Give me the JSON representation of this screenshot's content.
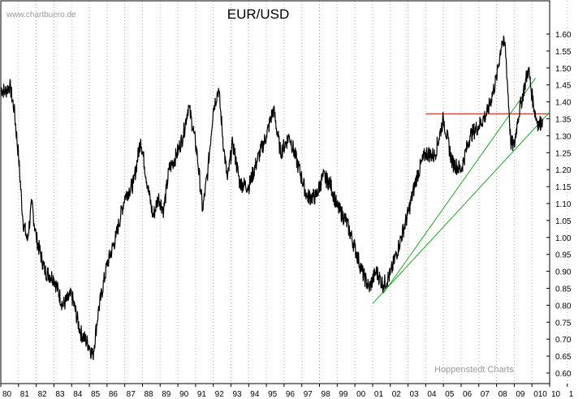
{
  "chart_data": {
    "type": "line",
    "title": "EUR/USD",
    "watermark": "www.chartbuero.de",
    "credit": "Hoppenstedt Charts",
    "xlabel": "",
    "ylabel": "",
    "xlim": [
      1980.0,
      2011.0
    ],
    "ylim": [
      0.58,
      1.66
    ],
    "grid": "vertical-dotted",
    "x_tick_labels": [
      "80",
      "81",
      "82",
      "83",
      "84",
      "85",
      "86",
      "87",
      "88",
      "89",
      "90",
      "91",
      "92",
      "93",
      "94",
      "95",
      "96",
      "97",
      "98",
      "99",
      "00",
      "01",
      "02",
      "03",
      "04",
      "05",
      "06",
      "07",
      "08",
      "09",
      "010",
      "10",
      "1"
    ],
    "y_ticks": [
      0.6,
      0.65,
      0.7,
      0.75,
      0.8,
      0.85,
      0.9,
      0.95,
      1.0,
      1.05,
      1.1,
      1.15,
      1.2,
      1.25,
      1.3,
      1.35,
      1.4,
      1.45,
      1.5,
      1.55,
      1.6
    ],
    "y_tick_labels": [
      "0.60",
      "0.65",
      "0.70",
      "0.75",
      "0.80",
      "0.85",
      "0.90",
      "0.95",
      "1.00",
      "1.05",
      "1.10",
      "1.15",
      "1.20",
      "1.25",
      "1.30",
      "1.35",
      "1.40",
      "1.45",
      "1.50",
      "1.55",
      "1.60"
    ],
    "series": [
      {
        "color": "#000000",
        "x": [
          1980.0,
          1980.25,
          1980.5,
          1980.75,
          1981.0,
          1981.25,
          1981.5,
          1981.75,
          1982.0,
          1982.5,
          1983.0,
          1983.5,
          1984.0,
          1984.5,
          1985.0,
          1985.2,
          1985.5,
          1986.0,
          1986.5,
          1987.0,
          1987.5,
          1987.9,
          1988.3,
          1988.6,
          1988.9,
          1989.2,
          1989.5,
          1989.9,
          1990.3,
          1990.6,
          1990.9,
          1991.1,
          1991.4,
          1991.7,
          1992.0,
          1992.3,
          1992.6,
          1992.8,
          1993.1,
          1993.5,
          1994.0,
          1994.5,
          1995.0,
          1995.4,
          1995.8,
          1996.3,
          1996.8,
          1997.3,
          1997.8,
          1998.2,
          1998.6,
          1999.0,
          1999.5,
          2000.0,
          2000.4,
          2000.8,
          2001.2,
          2001.6,
          2002.0,
          2002.5,
          2003.0,
          2003.5,
          2004.0,
          2004.5,
          2005.0,
          2005.5,
          2006.0,
          2006.5,
          2007.0,
          2007.5,
          2008.0,
          2008.3,
          2008.5,
          2008.7,
          2008.8,
          2009.0,
          2009.2,
          2009.4,
          2009.6,
          2009.8,
          2010.0,
          2010.2,
          2010.4,
          2010.6
        ],
        "y": [
          1.44,
          1.43,
          1.45,
          1.38,
          1.24,
          1.05,
          0.99,
          1.1,
          1.0,
          0.9,
          0.88,
          0.8,
          0.83,
          0.72,
          0.68,
          0.65,
          0.78,
          0.92,
          1.0,
          1.12,
          1.16,
          1.29,
          1.15,
          1.06,
          1.12,
          1.08,
          1.2,
          1.24,
          1.3,
          1.39,
          1.31,
          1.24,
          1.08,
          1.2,
          1.38,
          1.44,
          1.26,
          1.17,
          1.28,
          1.16,
          1.15,
          1.23,
          1.3,
          1.38,
          1.25,
          1.3,
          1.21,
          1.12,
          1.12,
          1.18,
          1.16,
          1.09,
          1.05,
          0.97,
          0.9,
          0.85,
          0.9,
          0.86,
          0.89,
          0.98,
          1.07,
          1.18,
          1.25,
          1.24,
          1.35,
          1.22,
          1.2,
          1.3,
          1.33,
          1.37,
          1.47,
          1.58,
          1.56,
          1.38,
          1.28,
          1.27,
          1.35,
          1.4,
          1.45,
          1.5,
          1.42,
          1.36,
          1.33,
          1.35
        ]
      }
    ],
    "overlays": [
      {
        "kind": "horizontal-line",
        "color": "#cc0000",
        "y": 1.365,
        "x_start": 2004.0,
        "x_end": 2011.0
      },
      {
        "kind": "trendline",
        "color": "#22a322",
        "x": [
          2001.0,
          2011.0
        ],
        "y": [
          0.805,
          1.37
        ]
      },
      {
        "kind": "trendline",
        "color": "#22a322",
        "x": [
          2001.6,
          2010.2
        ],
        "y": [
          0.835,
          1.47
        ]
      }
    ]
  }
}
